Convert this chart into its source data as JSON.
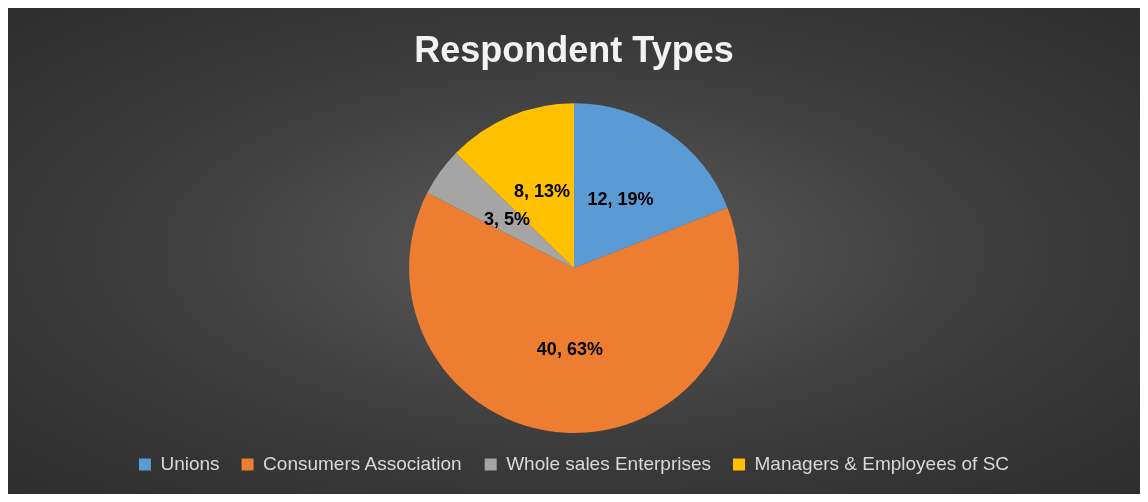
{
  "chart_data": {
    "type": "pie",
    "title": "Respondent Types",
    "categories": [
      "Unions",
      "Consumers Association",
      "Whole sales Enterprises",
      "Managers & Employees of SC"
    ],
    "values": [
      12,
      40,
      3,
      8
    ],
    "colors": [
      "#5b9bd5",
      "#ed7d31",
      "#a5a5a5",
      "#ffc000"
    ],
    "value_labels": [
      "12, 19%",
      "40, 63%",
      "3, 5%",
      "8, 13%"
    ],
    "legend": "bottom"
  }
}
